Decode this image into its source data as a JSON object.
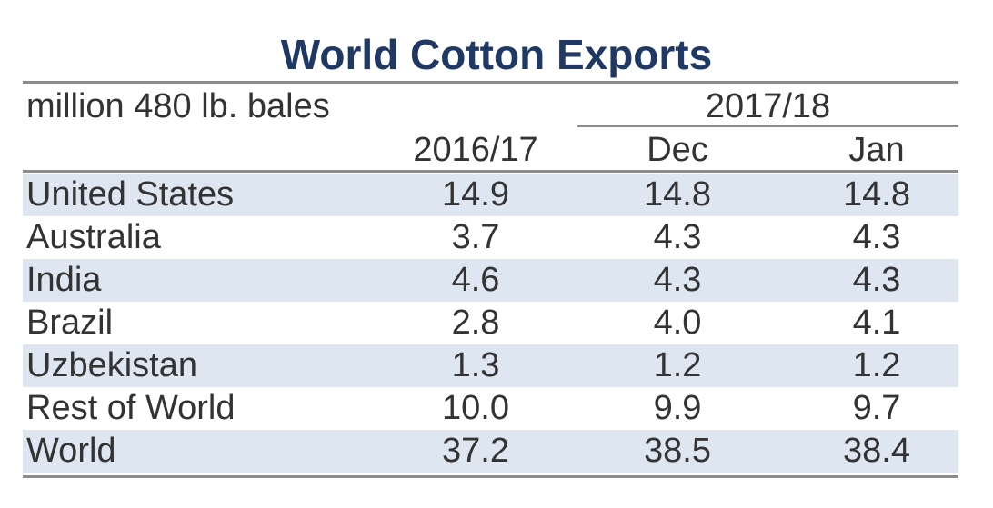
{
  "chart_data": {
    "type": "table",
    "title": "World Cotton Exports",
    "unit_label": "million 480 lb. bales",
    "group_header": "2017/18",
    "columns": [
      "2016/17",
      "Dec",
      "Jan"
    ],
    "rows": [
      {
        "name": "United States",
        "values": [
          "14.9",
          "14.8",
          "14.8"
        ]
      },
      {
        "name": "Australia",
        "values": [
          "3.7",
          "4.3",
          "4.3"
        ]
      },
      {
        "name": "India",
        "values": [
          "4.6",
          "4.3",
          "4.3"
        ]
      },
      {
        "name": "Brazil",
        "values": [
          "2.8",
          "4.0",
          "4.1"
        ]
      },
      {
        "name": "Uzbekistan",
        "values": [
          "1.3",
          "1.2",
          "1.2"
        ]
      },
      {
        "name": "Rest of World",
        "values": [
          "10.0",
          "9.9",
          "9.7"
        ]
      },
      {
        "name": "World",
        "values": [
          "37.2",
          "38.5",
          "38.4"
        ]
      }
    ]
  },
  "colors": {
    "title": "#1f3864",
    "row_shade": "#dde6f1",
    "rule": "#8c8c8c",
    "text": "#333333"
  }
}
